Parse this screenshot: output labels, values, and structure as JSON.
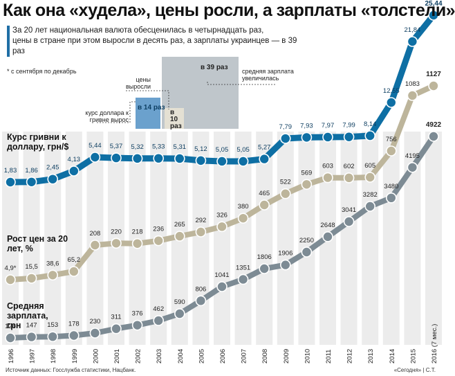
{
  "title": "Как она «худела», цены росли, а зарплаты «толстели»",
  "subtitle_lines": [
    "За 20 лет национальная валюта обесценилась в четырнадцать раз,",
    "цены в стране при этом выросли в десять раз, а зарплаты украинцев — в 39 раз"
  ],
  "footnote": "* с сентября по декабрь",
  "inset": {
    "dollar_label": "курс доллара к гривне вырос",
    "dollar_value": "в 14 раз",
    "prices_label": "цены выросли",
    "prices_value": "в 10 раз",
    "salary_label": "средняя зарплата увеличилась",
    "salary_value": "в 39 раз",
    "colors": {
      "dollar": "#6ba1cd",
      "prices": "#e4e0d3",
      "salary": "#bfc6cb"
    }
  },
  "series_labels": {
    "exchange": "Курс гривни к доллару, грн/$",
    "prices": "Рост цен за 20 лет, %",
    "salary": "Средняя зарплата, грн"
  },
  "source": "Источник данных: Госслужба статистики, Нацбанк.",
  "credit": "«Сегодня» | С.Т.",
  "chart_data": {
    "type": "line",
    "x": [
      "1996",
      "1997",
      "1998",
      "1999",
      "2000",
      "2001",
      "2002",
      "2003",
      "2004",
      "2005",
      "2006",
      "2007",
      "2008",
      "2009",
      "2010",
      "2011",
      "2012",
      "2013",
      "2014",
      "2015",
      "2016 (7 мес.)"
    ],
    "series": [
      {
        "name": "Курс гривни к доллару, грн/$",
        "color": "#0e6fa4",
        "values": [
          1.83,
          1.86,
          2.45,
          4.13,
          5.44,
          5.37,
          5.32,
          5.33,
          5.31,
          5.12,
          5.05,
          5.05,
          5.27,
          7.79,
          7.93,
          7.97,
          7.99,
          8.14,
          12.55,
          21.84,
          25.44
        ],
        "labels": [
          "1,83",
          "1,86",
          "2,45",
          "4,13",
          "5,44",
          "5,37",
          "5,32",
          "5,33",
          "5,31",
          "5,12",
          "5,05",
          "5,05",
          "5,27",
          "7,79",
          "7,93",
          "7,97",
          "7,99",
          "8,14",
          "12,55",
          "21,84",
          "25,44"
        ]
      },
      {
        "name": "Рост цен за 20 лет, %",
        "color": "#bdb59b",
        "values": [
          4.9,
          15.5,
          38.6,
          65.2,
          208,
          220,
          218,
          236,
          265,
          292,
          326,
          380,
          465,
          522,
          569,
          603,
          602,
          605,
          756,
          1083,
          1127
        ],
        "labels": [
          "4,9*",
          "15,5",
          "38,6",
          "65,2",
          "208",
          "220",
          "218",
          "236",
          "265",
          "292",
          "326",
          "380",
          "465",
          "522",
          "569",
          "603",
          "602",
          "605",
          "756",
          "1083",
          "1127"
        ]
      },
      {
        "name": "Средняя зарплата, грн",
        "color": "#7d8b94",
        "values": [
          126,
          147,
          153,
          178,
          230,
          311,
          376,
          462,
          590,
          806,
          1041,
          1351,
          1806,
          1906,
          2250,
          2648,
          3041,
          3282,
          3480,
          4195,
          4922
        ],
        "labels": [
          "126",
          "147",
          "153",
          "178",
          "230",
          "311",
          "376",
          "462",
          "590",
          "806",
          "1041",
          "1351",
          "1806",
          "1906",
          "2250",
          "2648",
          "3041",
          "3282",
          "3480",
          "4195",
          "4922"
        ]
      }
    ],
    "grid": false,
    "legend": "labels placed along lines"
  }
}
